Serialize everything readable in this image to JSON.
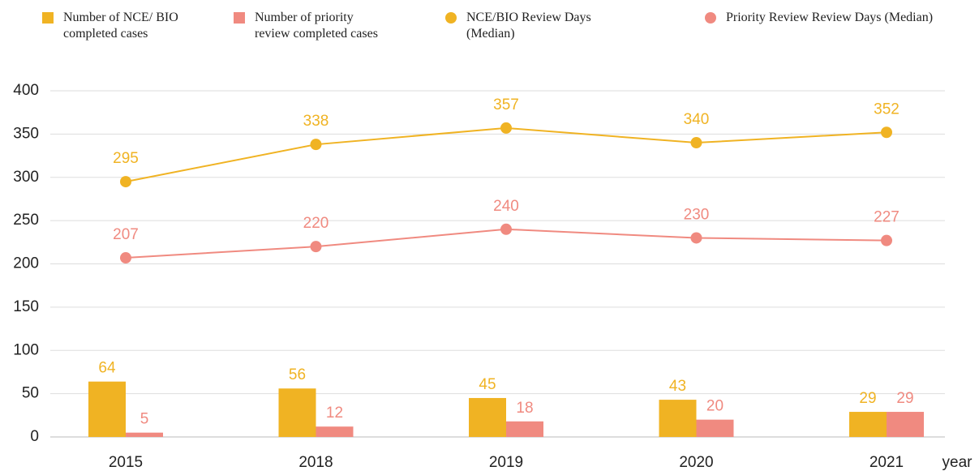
{
  "chart_data": {
    "type": "combo",
    "categories": [
      "2015",
      "2018",
      "2019",
      "2020",
      "2021"
    ],
    "x_label": "year",
    "ylim": [
      0,
      400
    ],
    "yticks": [
      0,
      50,
      100,
      150,
      200,
      250,
      300,
      350,
      400
    ],
    "grid": true,
    "series": [
      {
        "name": "Number of NCE/ BIO completed cases",
        "type": "bar",
        "color": "#f0b323",
        "values": [
          64,
          56,
          45,
          43,
          29
        ]
      },
      {
        "name": "Number of priority review completed cases",
        "type": "bar",
        "color": "#f08a80",
        "values": [
          5,
          12,
          18,
          20,
          29
        ]
      },
      {
        "name": "NCE/BIO Review Days (Median)",
        "type": "line",
        "color": "#f0b323",
        "values": [
          295,
          338,
          357,
          340,
          352
        ]
      },
      {
        "name": "Priority Review Review Days (Median)",
        "type": "line",
        "color": "#f08a80",
        "values": [
          207,
          220,
          240,
          230,
          227
        ]
      }
    ]
  }
}
